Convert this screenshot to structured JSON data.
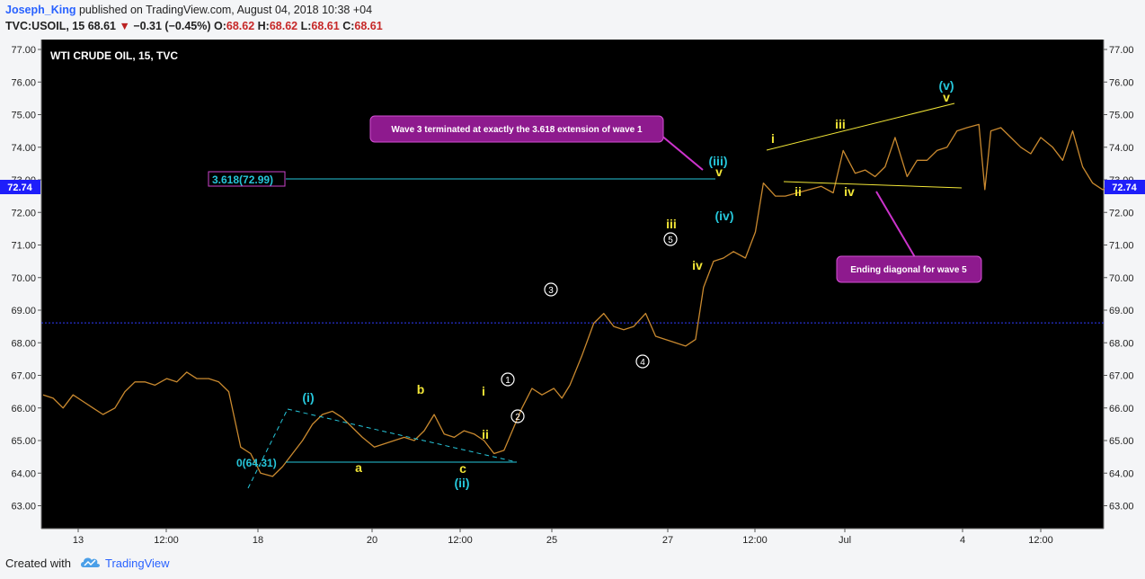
{
  "header": {
    "author": "Joseph_King",
    "published": "published on TradingView.com, August 04, 2018 10:38 +04",
    "symbol": "TVC:USOIL, 15",
    "last": "68.61",
    "change": "−0.31 (−0.45%)",
    "o_label": "O:",
    "o_value": "68.62",
    "h_label": "H:",
    "h_value": "68.62",
    "l_label": "L:",
    "l_value": "68.61",
    "c_label": "C:",
    "c_value": "68.61"
  },
  "footer": {
    "created_with": "Created with",
    "brand": "TradingView"
  },
  "colors": {
    "background": "#000000",
    "candles": "#c9892f",
    "cyan": "#26c6da",
    "yellow": "#f2e637",
    "callout": "#8e1a8e",
    "badge": "#1e1efa"
  },
  "chart_data": {
    "type": "line",
    "title": "WTI CRUDE OIL, 15, TVC",
    "ylim": [
      62.5,
      77.3
    ],
    "yticks": [
      "77.00",
      "76.00",
      "75.00",
      "74.00",
      "73.00",
      "72.00",
      "71.00",
      "70.00",
      "69.00",
      "68.00",
      "67.00",
      "66.00",
      "65.00",
      "64.00",
      "63.00"
    ],
    "xticks": [
      "13",
      "12:00",
      "18",
      "20",
      "12:00",
      "25",
      "27",
      "12:00",
      "Jul",
      "4",
      "12:00"
    ],
    "price_badge": "72.74",
    "current_price_line": 68.61,
    "series": [
      {
        "values": [
          66.4,
          66.3,
          66.0,
          66.4,
          66.2,
          66.0,
          65.8,
          66.0,
          66.5,
          66.8,
          66.8,
          66.7,
          66.9,
          66.8,
          67.1,
          66.9,
          66.9,
          66.8,
          66.5,
          64.8,
          64.6,
          64.0,
          63.9,
          64.2,
          64.6,
          65.0,
          65.5,
          65.8,
          65.9,
          65.7,
          65.4,
          65.1,
          64.8,
          64.9,
          65.0,
          65.1,
          65.0,
          65.3,
          65.8,
          65.2,
          65.1,
          65.3,
          65.2,
          65.0,
          64.6,
          64.7,
          66.0,
          66.6,
          66.4,
          66.6,
          66.3,
          66.7,
          67.6,
          68.6,
          68.9,
          68.5,
          68.4,
          68.5,
          68.9,
          68.2,
          68.1,
          68.0,
          67.9,
          68.1,
          69.7,
          70.5,
          70.6,
          70.8,
          70.6,
          71.4,
          72.9,
          72.5,
          72.5,
          72.6,
          72.7,
          72.8,
          72.6,
          73.9,
          73.2,
          73.3,
          73.1,
          73.4,
          74.3,
          73.1,
          73.6,
          73.6,
          73.9,
          74.0,
          74.5,
          74.6,
          74.7,
          72.7,
          74.5,
          74.6,
          74.3,
          74.0,
          73.8,
          74.3,
          74.0,
          73.6,
          74.5,
          73.4,
          72.9,
          72.7,
          72.9
        ],
        "x": [
          0,
          5,
          10,
          15,
          20,
          25,
          30,
          36,
          41,
          46,
          51,
          56,
          62,
          67,
          72,
          77,
          83,
          88,
          93,
          99,
          104,
          109,
          115,
          120,
          125,
          130,
          135,
          140,
          145,
          150,
          155,
          160,
          166,
          171,
          176,
          181,
          186,
          191,
          196,
          201,
          206,
          211,
          216,
          221,
          226,
          231,
          240,
          245,
          250,
          256,
          260,
          264,
          270,
          276,
          281,
          286,
          291,
          296,
          302,
          307,
          312,
          317,
          322,
          327,
          331,
          336,
          341,
          346,
          352,
          357,
          361,
          367,
          372,
          378,
          384,
          390,
          396,
          401,
          407,
          412,
          417,
          422,
          427,
          433,
          438,
          443,
          448,
          453,
          458,
          463,
          469,
          472,
          475,
          480,
          485,
          490,
          495,
          500,
          506,
          511,
          516,
          521,
          526,
          531,
          536
        ]
      }
    ],
    "fib_labels": {
      "ext": "3.618(72.99)",
      "base": "0(64.31)"
    },
    "wave_labels": {
      "i_cyan": "(i)",
      "ii_cyan": "(ii)",
      "iii_cyan": "(iii)",
      "iv_cyan": "(iv)",
      "v_cyan": "(v)",
      "a": "a",
      "b": "b",
      "c": "c",
      "i": "i",
      "ii": "ii",
      "iii": "iii",
      "iv": "iv",
      "v": "v",
      "c1": "1",
      "c2": "2",
      "c3": "3",
      "c4": "4",
      "c5": "5"
    },
    "annotations": [
      "Wave 3 terminated at exactly the 3.618 extension of wave 1",
      "Ending diagonal for wave 5"
    ]
  }
}
